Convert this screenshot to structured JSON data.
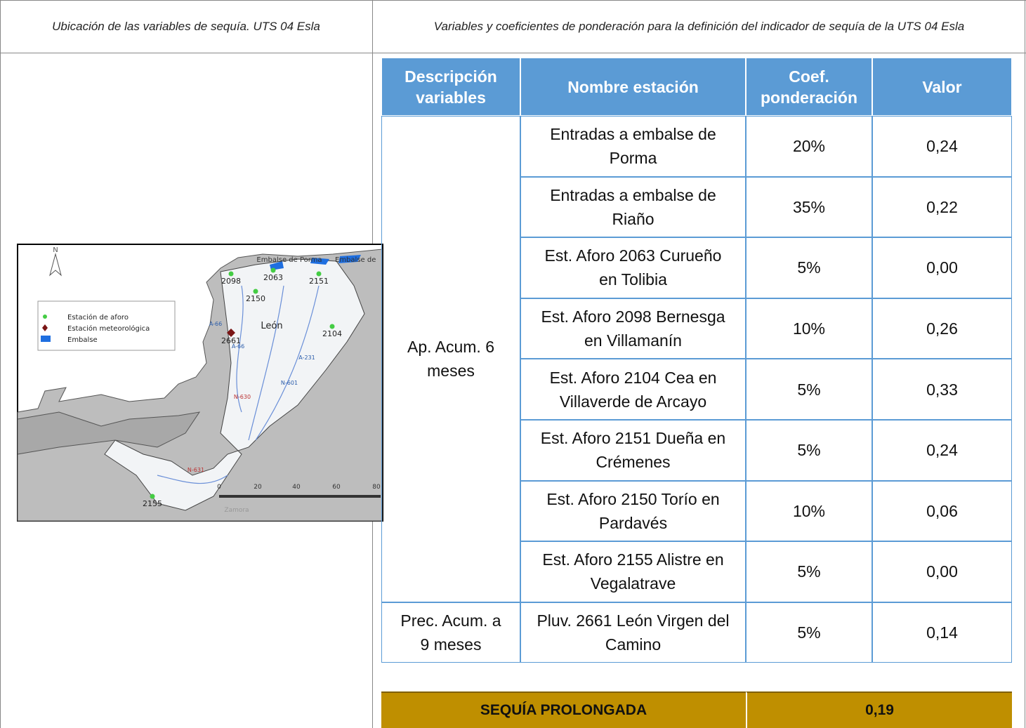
{
  "header": {
    "left": "Ubicación de las variables de sequía. UTS 04 Esla",
    "right": "Variables y coeficientes de ponderación para la definición del indicador de sequía de la UTS 04 Esla"
  },
  "map": {
    "north": "N",
    "legend": [
      "Estación de aforo",
      "Estación meteorológica",
      "Embalse"
    ],
    "reservoirs": [
      "Embalse de Porma",
      "Embalse de"
    ],
    "stations": [
      "2098",
      "2063",
      "2151",
      "2150",
      "2104",
      "2155"
    ],
    "weather_station": "2661",
    "city": "León",
    "roads": [
      "A-66",
      "A-66",
      "A-231",
      "N-601",
      "N-630",
      "N-631"
    ],
    "scale": [
      "0",
      "20",
      "40",
      "60",
      "80"
    ],
    "place": "Zamora"
  },
  "table": {
    "columns": [
      "Descripción variables",
      "Nombre estación",
      "Coef. ponderación",
      "Valor"
    ],
    "groups": [
      {
        "description": "Ap. Acum. 6 meses",
        "rows": [
          {
            "station": "Entradas a embalse de Porma",
            "coef": "20%",
            "value": "0,24"
          },
          {
            "station": "Entradas a embalse de Riaño",
            "coef": "35%",
            "value": "0,22"
          },
          {
            "station": "Est. Aforo 2063 Curueño en Tolibia",
            "coef": "5%",
            "value": "0,00"
          },
          {
            "station": "Est. Aforo 2098 Bernesga en Villamanín",
            "coef": "10%",
            "value": "0,26"
          },
          {
            "station": "Est. Aforo 2104 Cea en Villaverde de Arcayo",
            "coef": "5%",
            "value": "0,33"
          },
          {
            "station": "Est. Aforo 2151 Dueña en Crémenes",
            "coef": "5%",
            "value": "0,24"
          },
          {
            "station": "Est. Aforo 2150 Torío en Pardavés",
            "coef": "10%",
            "value": "0,06"
          },
          {
            "station": "Est. Aforo 2155 Alistre en Vegalatrave",
            "coef": "5%",
            "value": "0,00"
          }
        ]
      },
      {
        "description": "Prec. Acum. a 9 meses",
        "rows": [
          {
            "station": "Pluv. 2661 León Virgen del Camino",
            "coef": "5%",
            "value": "0,14"
          }
        ]
      }
    ]
  },
  "summary": {
    "label": "SEQUÍA PROLONGADA",
    "value": "0,19"
  }
}
